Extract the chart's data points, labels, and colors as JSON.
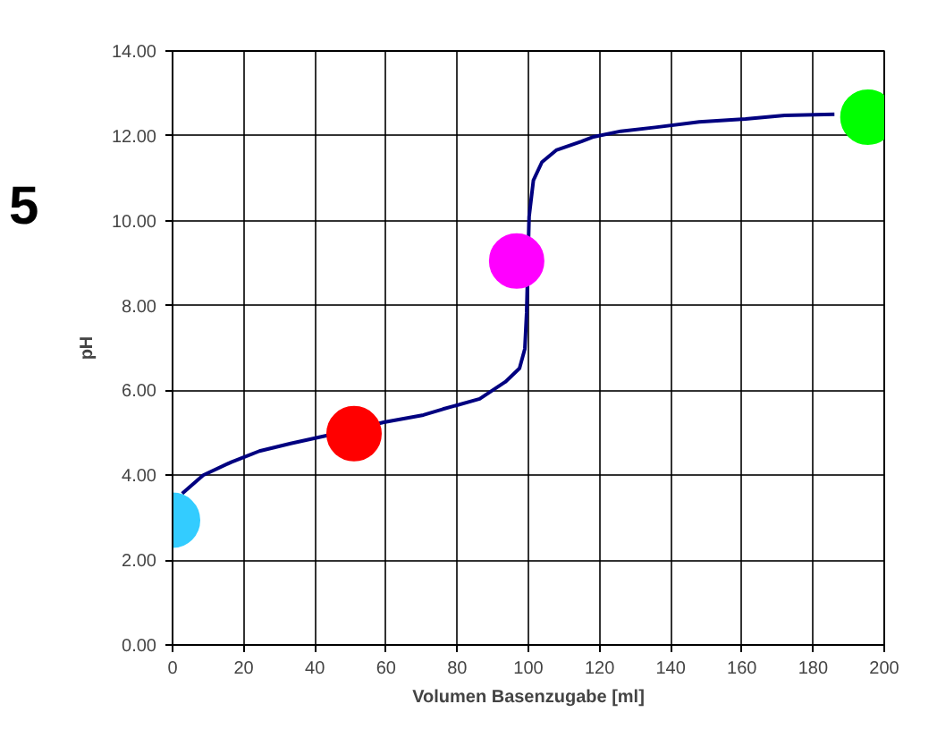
{
  "chart_data": {
    "type": "line",
    "xlabel": "Volumen Basenzugabe [ml]",
    "ylabel": "pH",
    "annotations": [
      "5"
    ],
    "xlim": [
      0,
      200
    ],
    "xticks": [
      0,
      20,
      40,
      60,
      80,
      100,
      120,
      140,
      160,
      180,
      200
    ],
    "ylim": [
      0,
      14
    ],
    "yticks": [
      {
        "value": 0,
        "label": "0.00"
      },
      {
        "value": 2,
        "label": "2.00"
      },
      {
        "value": 4,
        "label": "4.00"
      },
      {
        "value": 6,
        "label": "6.00"
      },
      {
        "value": 8,
        "label": "8.00"
      },
      {
        "value": 10,
        "label": "10.00"
      },
      {
        "value": 12,
        "label": "12.00"
      },
      {
        "value": 14,
        "label": "14.00"
      }
    ],
    "grid": true,
    "series": [
      {
        "color": "#000080",
        "marker": "none",
        "line_style": "solid",
        "x": [
          2.7,
          8.6,
          16.5,
          24.4,
          33.2,
          43.5,
          59.4,
          70.5,
          76,
          86.3,
          93.5,
          97.5,
          99,
          99.5,
          100.2,
          101.4,
          103.8,
          107.8,
          114.9,
          118,
          126,
          135.6,
          148,
          161,
          172,
          186
        ],
        "values": [
          3.57,
          4.0,
          4.31,
          4.57,
          4.75,
          4.94,
          5.25,
          5.42,
          5.56,
          5.8,
          6.2,
          6.52,
          6.98,
          7.83,
          10.1,
          10.95,
          11.38,
          11.66,
          11.87,
          11.97,
          12.11,
          12.2,
          12.33,
          12.4,
          12.48,
          12.51
        ]
      },
      {
        "type": "scatter",
        "marker": "circle",
        "x": [
          0,
          51,
          96.7,
          195.4
        ],
        "values": [
          2.94,
          4.98,
          9.05,
          12.44
        ],
        "colors": [
          "#33ccff",
          "#ff0000",
          "#ff00ff",
          "#00ff00"
        ]
      }
    ]
  }
}
